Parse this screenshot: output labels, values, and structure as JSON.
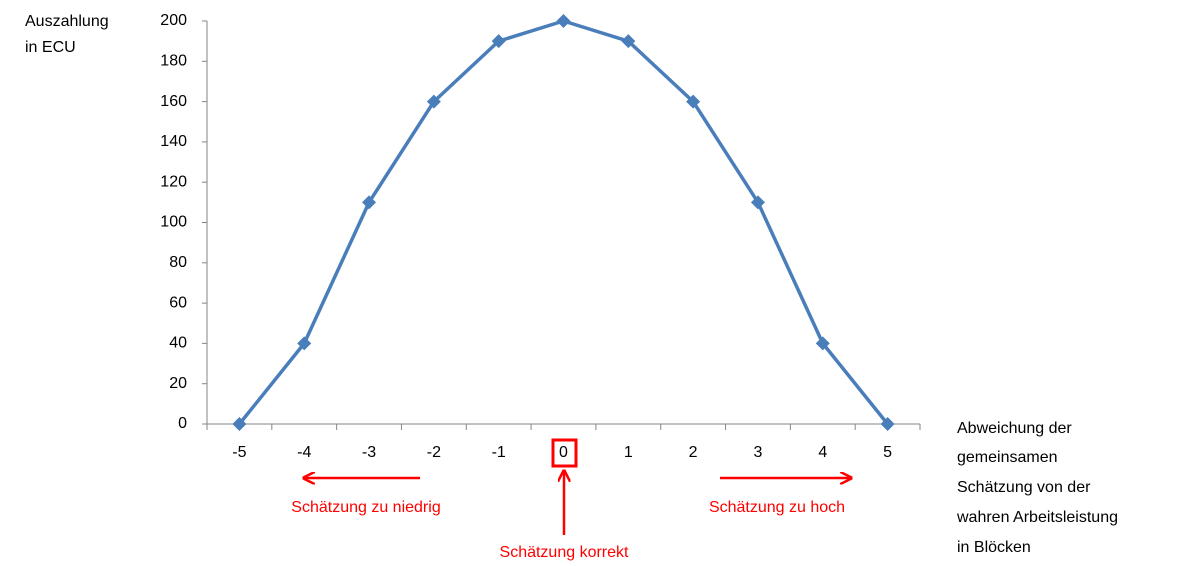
{
  "chart_data": {
    "type": "line",
    "ylabel": [
      "Auszahlung",
      "in ECU"
    ],
    "xlabel": [
      "Abweichung der",
      "gemeinsamen",
      "Schätzung von der",
      "wahren Arbeitsleistung",
      "in Blöcken"
    ],
    "categories": [
      "-5",
      "-4",
      "-3",
      "-2",
      "-1",
      "0",
      "1",
      "2",
      "3",
      "4",
      "5"
    ],
    "values": [
      0,
      40,
      110,
      160,
      190,
      200,
      190,
      160,
      110,
      40,
      0
    ],
    "color": "#4a7ebb",
    "ylim": [
      0,
      200
    ],
    "yticks": [
      0,
      20,
      40,
      60,
      80,
      100,
      120,
      140,
      160,
      180,
      200
    ],
    "annotations": [
      "Schätzung zu niedrig",
      "Schätzung zu hoch",
      "Schätzung korrekt"
    ],
    "annotation_color": "#ff0000"
  }
}
